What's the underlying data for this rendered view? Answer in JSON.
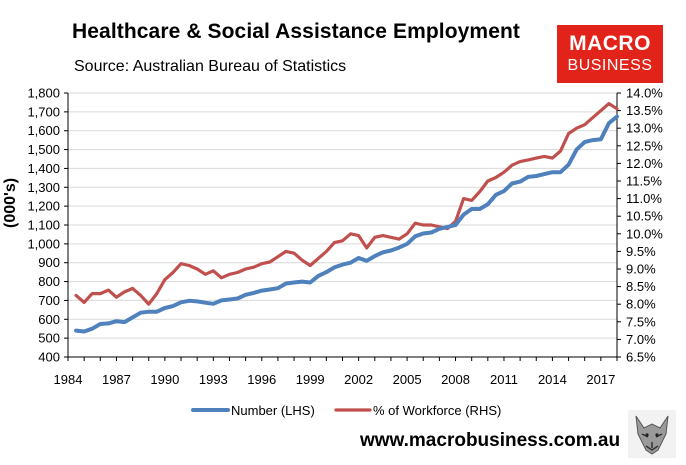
{
  "header": {
    "title": "Healthcare & Social Assistance Employment",
    "source": "Source: Australian Bureau of Statistics"
  },
  "logo": {
    "line1": "MACRO",
    "line2": "BUSINESS"
  },
  "footer": {
    "url": "www.macrobusiness.com.au",
    "emblem": "wolf-logo-icon"
  },
  "colors": {
    "number": "#4f81bd",
    "percent": "#c0504d",
    "grid": "#d9d9d9",
    "brand": "#e2231a"
  },
  "chart_data": {
    "type": "line",
    "title": "Healthcare & Social Assistance Employment",
    "ylabel": "(000's)",
    "xlabel": "",
    "x_ticks": [
      "1984",
      "1987",
      "1990",
      "1993",
      "1996",
      "1999",
      "2002",
      "2005",
      "2008",
      "2011",
      "2014",
      "2017"
    ],
    "xlim": [
      1984,
      2018
    ],
    "y_left": {
      "lim": [
        400,
        1800
      ],
      "ticks": [
        "400",
        "500",
        "600",
        "700",
        "800",
        "900",
        "1,000",
        "1,100",
        "1,200",
        "1,300",
        "1,400",
        "1,500",
        "1,600",
        "1,700",
        "1,800"
      ]
    },
    "y_right": {
      "lim": [
        6.5,
        14.0
      ],
      "ticks": [
        "6.5%",
        "7.0%",
        "7.5%",
        "8.0%",
        "8.5%",
        "9.0%",
        "9.5%",
        "10.0%",
        "10.5%",
        "11.0%",
        "11.5%",
        "12.0%",
        "12.5%",
        "13.0%",
        "13.5%",
        "14.0%"
      ]
    },
    "legend": "bottom",
    "series": [
      {
        "name": "Number (LHS)",
        "axis": "left",
        "x": [
          1984.5,
          1985,
          1985.5,
          1986,
          1986.5,
          1987,
          1987.5,
          1988,
          1988.5,
          1989,
          1989.5,
          1990,
          1990.5,
          1991,
          1991.5,
          1992,
          1992.5,
          1993,
          1993.5,
          1994,
          1994.5,
          1995,
          1995.5,
          1996,
          1996.5,
          1997,
          1997.5,
          1998,
          1998.5,
          1999,
          1999.5,
          2000,
          2000.5,
          2001,
          2001.5,
          2002,
          2002.5,
          2003,
          2003.5,
          2004,
          2004.5,
          2005,
          2005.5,
          2006,
          2006.5,
          2007,
          2007.5,
          2008,
          2008.5,
          2009,
          2009.5,
          2010,
          2010.5,
          2011,
          2011.5,
          2012,
          2012.5,
          2013,
          2013.5,
          2014,
          2014.5,
          2015,
          2015.5,
          2016,
          2016.5,
          2017,
          2017.5,
          2018
        ],
        "values": [
          540,
          535,
          550,
          575,
          578,
          590,
          585,
          610,
          635,
          640,
          640,
          660,
          670,
          690,
          698,
          695,
          688,
          682,
          700,
          705,
          710,
          730,
          740,
          752,
          758,
          765,
          790,
          795,
          800,
          795,
          830,
          850,
          875,
          890,
          900,
          925,
          910,
          935,
          955,
          965,
          980,
          1000,
          1040,
          1055,
          1060,
          1080,
          1090,
          1100,
          1155,
          1185,
          1185,
          1210,
          1260,
          1280,
          1320,
          1330,
          1355,
          1360,
          1370,
          1380,
          1380,
          1420,
          1500,
          1540,
          1550,
          1555,
          1640,
          1675
        ]
      },
      {
        "name": "% of Workforce (RHS)",
        "axis": "right",
        "x": [
          1984.5,
          1985,
          1985.5,
          1986,
          1986.5,
          1987,
          1987.5,
          1988,
          1988.5,
          1989,
          1989.5,
          1990,
          1990.5,
          1991,
          1991.5,
          1992,
          1992.5,
          1993,
          1993.5,
          1994,
          1994.5,
          1995,
          1995.5,
          1996,
          1996.5,
          1997,
          1997.5,
          1998,
          1998.5,
          1999,
          1999.5,
          2000,
          2000.5,
          2001,
          2001.5,
          2002,
          2002.5,
          2003,
          2003.5,
          2004,
          2004.5,
          2005,
          2005.5,
          2006,
          2006.5,
          2007,
          2007.5,
          2008,
          2008.5,
          2009,
          2009.5,
          2010,
          2010.5,
          2011,
          2011.5,
          2012,
          2012.5,
          2013,
          2013.5,
          2014,
          2014.5,
          2015,
          2015.5,
          2016,
          2016.5,
          2017,
          2017.5,
          2018
        ],
        "values": [
          8.25,
          8.05,
          8.3,
          8.3,
          8.4,
          8.2,
          8.35,
          8.45,
          8.25,
          8.0,
          8.3,
          8.7,
          8.9,
          9.15,
          9.1,
          9.0,
          8.85,
          8.95,
          8.75,
          8.85,
          8.9,
          9.0,
          9.05,
          9.15,
          9.2,
          9.35,
          9.5,
          9.45,
          9.25,
          9.1,
          9.3,
          9.5,
          9.75,
          9.8,
          10.0,
          9.95,
          9.6,
          9.9,
          9.95,
          9.9,
          9.85,
          10.0,
          10.3,
          10.25,
          10.25,
          10.2,
          10.15,
          10.35,
          11.0,
          10.95,
          11.2,
          11.5,
          11.6,
          11.75,
          11.95,
          12.05,
          12.1,
          12.15,
          12.2,
          12.15,
          12.35,
          12.85,
          13.0,
          13.1,
          13.3,
          13.5,
          13.7,
          13.55
        ]
      }
    ]
  }
}
